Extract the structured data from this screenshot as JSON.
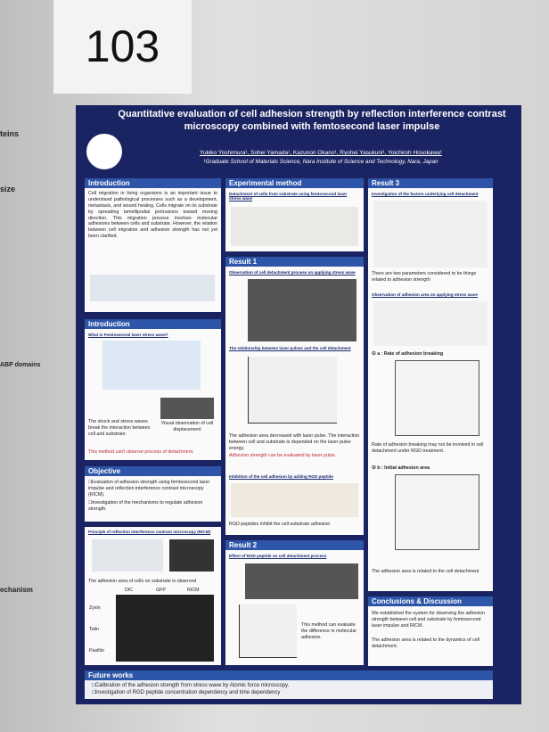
{
  "board_number": "103",
  "title": "Quantitative evaluation of cell adhesion strength by reflection interference contrast microscopy combined with femtosecond laser impulse",
  "authors": "Yukiko Yoshimura¹, Sohei Yamada¹, Kazunori Okano¹, Ryohei Yasukuni¹, Yoichiroh Hosokawa¹",
  "affiliation": "¹Graduate School of Materials Science, Nara Institute of Science and Technology, Nara, Japan",
  "neighbor_left": [
    "teins",
    "size",
    "ABP domains",
    "echanism"
  ],
  "introduction": {
    "heading": "Introduction",
    "text": "Cell migration in living organisms is an important issue to understand pathological processes such as a development, metastasis, and wound healing. Cells migrate on its substrate by spreading lamellipodial protrusions toward moving direction. This migration process involves molecular adhesions between cells and substrate. However, the relation between cell migration and adhesion strength has not yet been clarified."
  },
  "introduction2": {
    "heading": "Introduction",
    "subtitle": "What is Femtosecond laser stress wave?",
    "caption1": "The shock and stress waves break the interaction between cell and substrate.",
    "caption2": "Visual observation of cell displacement",
    "note": "This method can't observe process of detachment."
  },
  "objective": {
    "heading": "Objective",
    "items": [
      "□Evaluation of adhesion strength using femtosecond laser impulse and reflection interference contrast microscopy (RICM).",
      "□Investigation of the mechanisms to regulate adhesion strength."
    ]
  },
  "principle": {
    "subtitle": "Principle of reflection interference contrast microscopy (RICM)",
    "text": "The adhesion area of cells on substrate is observed",
    "columns": [
      "DIC",
      "GFP",
      "RICM"
    ],
    "rows": [
      "Zyxin",
      "Talin",
      "Paxillin"
    ]
  },
  "method": {
    "heading": "Experimental method",
    "subtitle": "Detachment of cells from substrate using femtosecond laser stress wave"
  },
  "result1": {
    "heading": "Result 1",
    "subtitle1": "Observation of cell detachment process on applying stress wave",
    "subtitle2": "The relationship between laser pulses and the cell detachment",
    "text": "The adhesion area decreased with laser pulse. The interaction between cell and substrate is depended on the laser pulse energy.",
    "highlight": "Adhesion strength can be evaluated by laser pulse.",
    "subtitle3": "Inhibition of the cell adhesion by adding RGD peptide",
    "text2": "RGD peptides inhibit the cell-substrate adhesion"
  },
  "result2": {
    "heading": "Result 2",
    "subtitle": "Effect of RGD peptide on cell detachment process",
    "text": "This method can evaluate the difference in molecular adhesion."
  },
  "result3": {
    "heading": "Result 3",
    "subtitle1": "Investigation of the factors underlying cell detachment",
    "text1": "There are two parameters considered to be things related to adhesion strength",
    "subtitle2": "Observation of adhesion area on applying stress wave",
    "sub_a": "① a : Rate of adhesion breaking",
    "text_a": "Rate of adhesion breaking may not be involved in cell detachment under RGD treatment.",
    "sub_b": "② b : Initial adhesion area",
    "text_b": "The adhesion area is related to the cell detachment"
  },
  "conclusions": {
    "heading": "Conclusions & Discussion",
    "items": [
      "We established the system for observing the adhesion strength between cell and substrate by femtosecond laser impulse and RICM.",
      "The adhesion area is related to the dynamics of cell detachment."
    ]
  },
  "future": {
    "heading": "Future works",
    "items": [
      "□Calibration of the adhesion strength from stress wave by Atomic force microscopy.",
      "□Investigation of RGD peptide concentration dependency and time dependency"
    ]
  }
}
